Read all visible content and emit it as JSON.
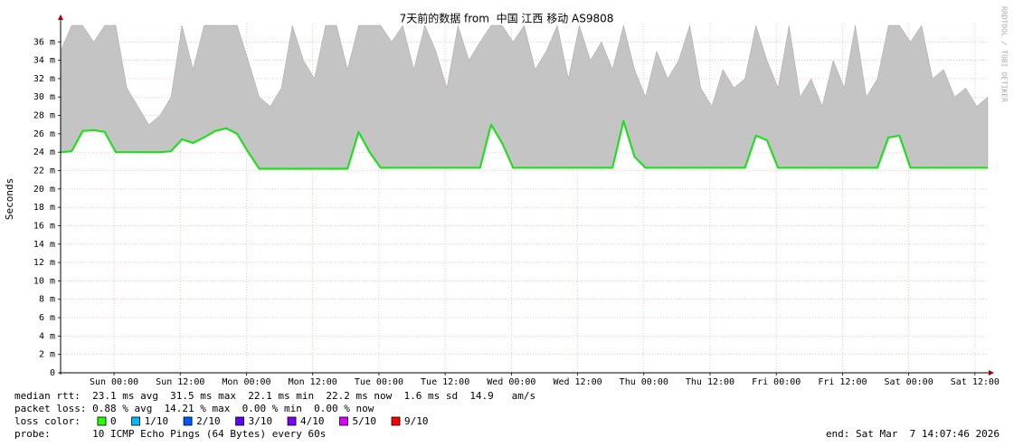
{
  "chart_data": {
    "type": "line",
    "title": "7天前的数据 from  中国 江西 移动 AS9808",
    "y_label": "Seconds",
    "x": [
      0,
      2,
      4,
      6,
      8,
      10,
      12,
      14,
      16,
      18,
      20,
      22,
      24,
      26,
      28,
      30,
      32,
      34,
      36,
      38,
      40,
      42,
      44,
      46,
      48,
      50,
      52,
      54,
      56,
      58,
      60,
      62,
      64,
      66,
      68,
      70,
      72,
      74,
      76,
      78,
      80,
      82,
      84,
      86,
      88,
      90,
      92,
      94,
      96,
      98,
      100,
      102,
      104,
      106,
      108,
      110,
      112,
      114,
      116,
      118,
      120,
      122,
      124,
      126,
      128,
      130,
      132,
      134,
      136,
      138,
      140,
      142,
      144,
      146,
      148,
      150,
      152,
      154,
      156,
      158,
      160,
      162,
      164,
      166,
      168
    ],
    "xlim": [
      0,
      168
    ],
    "xticks": [
      {
        "value": 9.68,
        "label": "Sun 00:00"
      },
      {
        "value": 21.68,
        "label": "Sun 12:00"
      },
      {
        "value": 33.68,
        "label": "Mon 00:00"
      },
      {
        "value": 45.68,
        "label": "Mon 12:00"
      },
      {
        "value": 57.68,
        "label": "Tue 00:00"
      },
      {
        "value": 69.68,
        "label": "Tue 12:00"
      },
      {
        "value": 81.68,
        "label": "Wed 00:00"
      },
      {
        "value": 93.68,
        "label": "Wed 12:00"
      },
      {
        "value": 105.68,
        "label": "Thu 00:00"
      },
      {
        "value": 117.68,
        "label": "Thu 12:00"
      },
      {
        "value": 129.68,
        "label": "Fri 00:00"
      },
      {
        "value": 141.68,
        "label": "Fri 12:00"
      },
      {
        "value": 153.68,
        "label": "Sat 00:00"
      },
      {
        "value": 165.68,
        "label": "Sat 12:00"
      }
    ],
    "ylim": [
      0,
      0.0378
    ],
    "yticks": [
      0,
      {
        "value": 0.002,
        "label": "2 m"
      },
      {
        "value": 0.004,
        "label": "4 m"
      },
      {
        "value": 0.006,
        "label": "6 m"
      },
      {
        "value": 0.008,
        "label": "8 m"
      },
      {
        "value": 0.01,
        "label": "10 m"
      },
      {
        "value": 0.012,
        "label": "12 m"
      },
      {
        "value": 0.014,
        "label": "14 m"
      },
      {
        "value": 0.016,
        "label": "16 m"
      },
      {
        "value": 0.018,
        "label": "18 m"
      },
      {
        "value": 0.02,
        "label": "20 m"
      },
      {
        "value": 0.022,
        "label": "22 m"
      },
      {
        "value": 0.024,
        "label": "24 m"
      },
      {
        "value": 0.026,
        "label": "26 m"
      },
      {
        "value": 0.028,
        "label": "28 m"
      },
      {
        "value": 0.03,
        "label": "30 m"
      },
      {
        "value": 0.032,
        "label": "32 m"
      },
      {
        "value": 0.034,
        "label": "34 m"
      },
      {
        "value": 0.036,
        "label": "36 m"
      }
    ],
    "grid": true,
    "series": [
      {
        "color": "#22dd22",
        "values": [
          0.024,
          0.0241,
          0.0263,
          0.0264,
          0.0262,
          0.024,
          0.024,
          0.024,
          0.024,
          0.024,
          0.0241,
          0.0254,
          0.025,
          0.0256,
          0.0263,
          0.0266,
          0.026,
          0.024,
          0.0222,
          0.0222,
          0.0222,
          0.0222,
          0.0222,
          0.0222,
          0.0222,
          0.0222,
          0.0222,
          0.0262,
          0.024,
          0.0223,
          0.0223,
          0.0223,
          0.0223,
          0.0223,
          0.0223,
          0.0223,
          0.0223,
          0.0223,
          0.0223,
          0.027,
          0.025,
          0.0223,
          0.0223,
          0.0223,
          0.0223,
          0.0223,
          0.0223,
          0.0223,
          0.0223,
          0.0223,
          0.0223,
          0.0274,
          0.0235,
          0.0223,
          0.0223,
          0.0223,
          0.0223,
          0.0223,
          0.0223,
          0.0223,
          0.0223,
          0.0223,
          0.0223,
          0.0258,
          0.0253,
          0.0223,
          0.0223,
          0.0223,
          0.0223,
          0.0223,
          0.0223,
          0.0223,
          0.0223,
          0.0223,
          0.0223,
          0.0256,
          0.0258,
          0.0223,
          0.0223,
          0.0223,
          0.0223,
          0.0223,
          0.0223,
          0.0223,
          0.0223
        ]
      },
      {
        "color": "#c4c4c4",
        "values": [
          0.035,
          0.0378,
          0.0378,
          0.036,
          0.0378,
          0.0378,
          0.031,
          0.029,
          0.027,
          0.028,
          0.03,
          0.0378,
          0.033,
          0.0378,
          0.0378,
          0.0378,
          0.0378,
          0.034,
          0.03,
          0.029,
          0.031,
          0.0378,
          0.034,
          0.032,
          0.0378,
          0.0378,
          0.033,
          0.0378,
          0.0378,
          0.0378,
          0.036,
          0.0378,
          0.033,
          0.0378,
          0.035,
          0.031,
          0.0378,
          0.034,
          0.036,
          0.0378,
          0.0378,
          0.036,
          0.0378,
          0.033,
          0.035,
          0.0378,
          0.032,
          0.0378,
          0.034,
          0.036,
          0.033,
          0.0378,
          0.033,
          0.03,
          0.035,
          0.032,
          0.034,
          0.0378,
          0.031,
          0.029,
          0.033,
          0.031,
          0.032,
          0.0378,
          0.034,
          0.031,
          0.0378,
          0.03,
          0.032,
          0.029,
          0.034,
          0.031,
          0.0378,
          0.03,
          0.032,
          0.0378,
          0.0378,
          0.036,
          0.0378,
          0.032,
          0.033,
          0.03,
          0.031,
          0.029,
          0.03
        ]
      }
    ]
  },
  "footer": {
    "median_rtt": "median rtt:  23.1 ms avg  31.5 ms max  22.1 ms min  22.2 ms now  1.6 ms sd  14.9   am/s",
    "packet_loss": "packet loss: 0.88 % avg  14.21 % max  0.00 % min  0.00 % now",
    "loss_color_label": "loss color:",
    "loss_colors": [
      {
        "label": "0",
        "color": "#26ff00"
      },
      {
        "label": "1/10",
        "color": "#00b8ff"
      },
      {
        "label": "2/10",
        "color": "#0059ff"
      },
      {
        "label": "3/10",
        "color": "#5e00ff"
      },
      {
        "label": "4/10",
        "color": "#7e00ff"
      },
      {
        "label": "5/10",
        "color": "#dd00ff"
      },
      {
        "label": "9/10",
        "color": "#ff0000"
      }
    ],
    "probe": "probe:       10 ICMP Echo Pings (64 Bytes) every 60s",
    "end": "end: Sat Mar  7 14:07:46 2026"
  },
  "watermark": "RRDTOOL / TOBI OETIKER"
}
